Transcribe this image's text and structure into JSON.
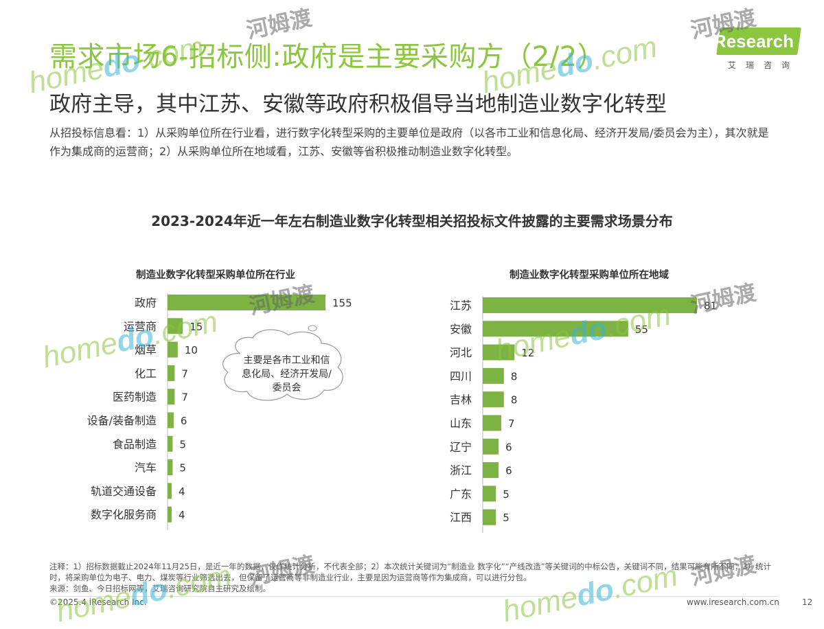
{
  "header": {
    "title": "需求市场6-招标侧:政府是主要采购方（2/2）",
    "subtitle": "政府主导，其中江苏、安徽等政府积极倡导当地制造业数字化转型",
    "description": "从招投标信息看：1）从采购单位所在行业看，进行数字化转型采购的主要单位是政府（以各市工业和信息化局、经济开发局/委员会为主），其次就是作为集成商的运营商；2）从采购单位所在地域看，江苏、安徽等省积极推动制造业数字化转型。"
  },
  "logo": {
    "text": "iResearch",
    "sub": "艾瑞咨询"
  },
  "colors": {
    "accent": "#8cc63f",
    "bar": "#7cb342"
  },
  "chart_title": "2023-2024年近一年左右制造业数字化转型相关招投标文件披露的主要需求场景分布",
  "chart_data": [
    {
      "type": "bar",
      "orientation": "horizontal",
      "title": "制造业数字化转型采购单位所在行业",
      "categories": [
        "政府",
        "运营商",
        "烟草",
        "化工",
        "医药制造",
        "设备/装备制造",
        "食品制造",
        "汽车",
        "轨道交通设备",
        "数字化服务商"
      ],
      "values": [
        155,
        15,
        10,
        7,
        7,
        6,
        5,
        5,
        4,
        4
      ],
      "annotation": "主要是各市工业和信息化局、经济开发局/委员会"
    },
    {
      "type": "bar",
      "orientation": "horizontal",
      "title": "制造业数字化转型采购单位所在地域",
      "categories": [
        "江苏",
        "安徽",
        "河北",
        "四川",
        "吉林",
        "山东",
        "辽宁",
        "浙江",
        "广东",
        "江西"
      ],
      "values": [
        81,
        55,
        12,
        8,
        8,
        7,
        6,
        6,
        5,
        5
      ]
    }
  ],
  "footer": {
    "notes": "注释：1）招标数据截止2024年11月25日，是近一年的数据，仅作统计分析，不代表全部；2）本次统计关键词为“制造业 数字化”“产线改造”等关键词的中标公告，关键词不同，结果可能有所不同；3）统计时，将采购单位为电子、电力、煤炭等行业筛选出去，但保留了运营商等非制造业行业，主要是因为运营商等作为集成商，可以进行分包。",
    "source": "来源：剑鱼、今日招标网等，艾瑞咨询研究院自主研究及绘制。",
    "copyright": "©2025.4 iResearch Inc.",
    "website": "www.iresearch.com.cn",
    "page": "12"
  },
  "watermark": {
    "en_a": "home",
    "en_b": "do",
    "en_c": ".com",
    "cn": "河姆渡"
  }
}
